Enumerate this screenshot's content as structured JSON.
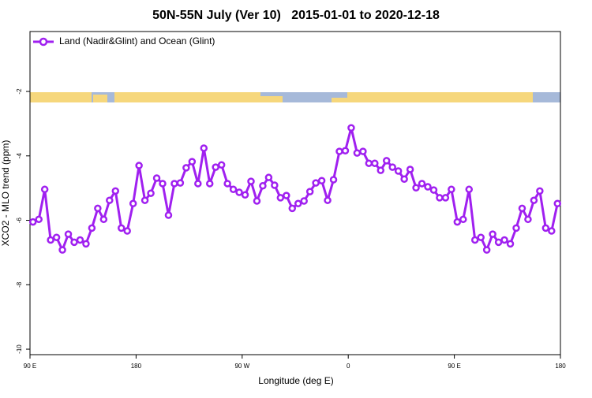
{
  "chart_data": {
    "type": "line",
    "title": "50N-55N July (Ver 10)   2015-01-01 to 2020-12-18",
    "xlabel": "Longitude (deg E)",
    "ylabel": "XCO2 - MLO trend (ppm)",
    "xlim": [
      90,
      540
    ],
    "xticks": [
      {
        "value": 90,
        "label": "90 E"
      },
      {
        "value": 180,
        "label": "180"
      },
      {
        "value": 270,
        "label": "90 W"
      },
      {
        "value": 360,
        "label": "0"
      },
      {
        "value": 450,
        "label": "90 E"
      },
      {
        "value": 540,
        "label": "180"
      }
    ],
    "ylim": [
      -10.17,
      -0.14
    ],
    "yticks": [
      -2,
      -4,
      -6,
      -8,
      -10
    ],
    "legend": "upper left",
    "x": [
      92.5,
      97.5,
      102.5,
      107.5,
      112.5,
      117.5,
      122.5,
      127.5,
      132.5,
      137.5,
      142.5,
      147.5,
      152.5,
      157.5,
      162.5,
      167.5,
      172.5,
      177.5,
      182.5,
      187.5,
      192.5,
      197.5,
      202.5,
      207.5,
      212.5,
      217.5,
      222.5,
      227.5,
      232.5,
      237.5,
      242.5,
      247.5,
      252.5,
      257.5,
      262.5,
      267.5,
      272.5,
      277.5,
      282.5,
      287.5,
      292.5,
      297.5,
      302.5,
      307.5,
      312.5,
      317.5,
      322.5,
      327.5,
      332.5,
      337.5,
      342.5,
      347.5,
      352.5,
      357.5,
      362.5,
      367.5,
      372.5,
      377.5,
      382.5,
      387.5,
      392.5,
      397.5,
      402.5,
      407.5,
      412.5,
      417.5,
      422.5,
      427.5,
      432.5,
      437.5,
      442.5,
      447.5,
      452.5,
      457.5,
      462.5,
      467.5,
      472.5,
      477.5,
      482.5,
      487.5,
      492.5,
      497.5,
      502.5,
      507.5,
      512.5,
      517.5,
      522.5,
      527.5,
      532.5,
      537.5
    ],
    "series": [
      {
        "name": "Land (Nadir&Glint) and Ocean (Glint)",
        "color": "#a020f0",
        "values": [
          -6.05,
          -5.97,
          -5.04,
          -6.61,
          -6.53,
          -6.92,
          -6.43,
          -6.68,
          -6.61,
          -6.73,
          -6.24,
          -5.63,
          -5.97,
          -5.38,
          -5.09,
          -6.24,
          -6.33,
          -5.48,
          -4.3,
          -5.38,
          -5.16,
          -4.69,
          -4.86,
          -5.84,
          -4.86,
          -4.84,
          -4.37,
          -4.18,
          -4.86,
          -3.76,
          -4.86,
          -4.35,
          -4.28,
          -4.86,
          -5.04,
          -5.13,
          -5.21,
          -4.79,
          -5.4,
          -4.93,
          -4.67,
          -4.91,
          -5.3,
          -5.23,
          -5.63,
          -5.48,
          -5.4,
          -5.11,
          -4.84,
          -4.77,
          -5.38,
          -4.74,
          -3.86,
          -3.84,
          -3.13,
          -3.91,
          -3.86,
          -4.23,
          -4.23,
          -4.45,
          -4.15,
          -4.35,
          -4.47,
          -4.72,
          -4.42,
          -4.99,
          -4.86,
          -4.96,
          -5.06,
          -5.3,
          -5.3,
          -5.04,
          -6.05,
          -5.97,
          -5.04,
          -6.61,
          -6.53,
          -6.92,
          -6.43,
          -6.68,
          -6.61,
          -6.73,
          -6.24,
          -5.63,
          -5.97,
          -5.38,
          -5.09,
          -6.24,
          -6.33,
          -5.48
        ]
      }
    ]
  }
}
